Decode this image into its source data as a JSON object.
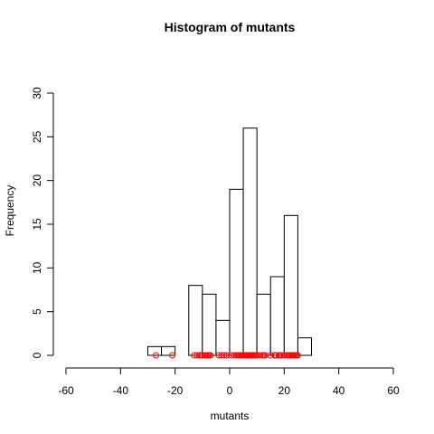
{
  "chart_data": {
    "type": "bar",
    "title": "Histogram of mutants",
    "xlabel": "mutants",
    "ylabel": "Frequency",
    "xlim": [
      -60,
      60
    ],
    "ylim": [
      0,
      30
    ],
    "x_ticks": [
      -60,
      -40,
      -20,
      0,
      20,
      40,
      60
    ],
    "y_ticks": [
      0,
      5,
      10,
      15,
      20,
      25,
      30
    ],
    "bins": [
      {
        "from": -30,
        "to": -25,
        "count": 1
      },
      {
        "from": -25,
        "to": -20,
        "count": 1
      },
      {
        "from": -20,
        "to": -15,
        "count": 0
      },
      {
        "from": -15,
        "to": -10,
        "count": 8
      },
      {
        "from": -10,
        "to": -5,
        "count": 7
      },
      {
        "from": -5,
        "to": 0,
        "count": 4
      },
      {
        "from": 0,
        "to": 5,
        "count": 19
      },
      {
        "from": 5,
        "to": 10,
        "count": 26
      },
      {
        "from": 10,
        "to": 15,
        "count": 7
      },
      {
        "from": 15,
        "to": 20,
        "count": 9
      },
      {
        "from": 20,
        "to": 25,
        "count": 16
      },
      {
        "from": 25,
        "to": 30,
        "count": 2
      }
    ],
    "rug_points": [
      -27,
      -21,
      -13,
      -12,
      -11,
      -10.5,
      -10,
      -9,
      -8.5,
      -8,
      -7.5,
      -7,
      -4,
      -3,
      -2,
      -1,
      0.5,
      1.5,
      2.5,
      3,
      3.5,
      4,
      4.5,
      5,
      5.5,
      6,
      6.5,
      7,
      7.5,
      8,
      8.5,
      9,
      9.5,
      10,
      11,
      12,
      12.5,
      13,
      15,
      16.5,
      17,
      18,
      18.5,
      19,
      20,
      21,
      21.5,
      22,
      22.5,
      23,
      23.5,
      24,
      24.5,
      25
    ],
    "bar_fill": "#ffffff",
    "bar_stroke": "#000000",
    "rug_color": "#ff0000",
    "grid": false
  }
}
